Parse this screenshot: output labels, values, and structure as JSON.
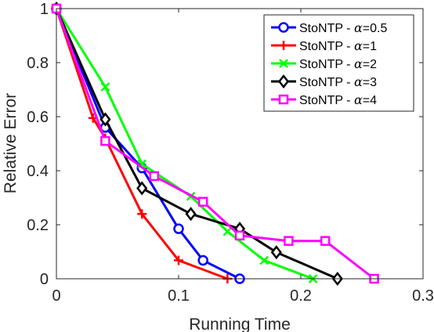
{
  "chart_data": {
    "type": "line",
    "xlabel": "Running Time",
    "ylabel": "Relative Error",
    "xlim": [
      0,
      0.3
    ],
    "ylim": [
      0,
      1
    ],
    "xticks": [
      0,
      0.1,
      0.2,
      0.3
    ],
    "xtick_labels": [
      "0",
      "0.1",
      "0.2",
      "0.3"
    ],
    "yticks": [
      0,
      0.2,
      0.4,
      0.6,
      0.8,
      1
    ],
    "ytick_labels": [
      "0",
      "0.2",
      "0.4",
      "0.6",
      "0.8",
      "1"
    ],
    "grid": false,
    "legend_position": "top-right",
    "series": [
      {
        "name": "StoNTP - α=0.5",
        "name_prefix": "StoNTP - ",
        "name_symbol": "α",
        "name_value": "=0.5",
        "color": "#0000ff",
        "marker": "circle",
        "x": [
          0,
          0.04,
          0.07,
          0.1,
          0.12,
          0.15
        ],
        "y": [
          1,
          0.56,
          0.41,
          0.185,
          0.068,
          0
        ]
      },
      {
        "name": "StoNTP - α=1",
        "name_prefix": "StoNTP - ",
        "name_symbol": "α",
        "name_value": "=1",
        "color": "#ff0000",
        "marker": "plus",
        "x": [
          0,
          0.03,
          0.04,
          0.07,
          0.1,
          0.14
        ],
        "y": [
          1,
          0.595,
          0.52,
          0.24,
          0.068,
          0
        ]
      },
      {
        "name": "StoNTP - α=2",
        "name_prefix": "StoNTP - ",
        "name_symbol": "α",
        "name_value": "=2",
        "color": "#00ff00",
        "marker": "x",
        "x": [
          0,
          0.04,
          0.07,
          0.11,
          0.14,
          0.17,
          0.21
        ],
        "y": [
          1,
          0.71,
          0.425,
          0.305,
          0.175,
          0.068,
          0
        ]
      },
      {
        "name": "StoNTP - α=3",
        "name_prefix": "StoNTP - ",
        "name_symbol": "α",
        "name_value": "=3",
        "color": "#000000",
        "marker": "diamond",
        "x": [
          0,
          0.04,
          0.07,
          0.11,
          0.15,
          0.18,
          0.23
        ],
        "y": [
          1,
          0.59,
          0.335,
          0.24,
          0.185,
          0.098,
          0
        ]
      },
      {
        "name": "StoNTP - α=4",
        "name_prefix": "StoNTP - ",
        "name_symbol": "α",
        "name_value": "=4",
        "color": "#ff00ff",
        "marker": "square",
        "x": [
          0,
          0.04,
          0.08,
          0.12,
          0.15,
          0.19,
          0.22,
          0.26
        ],
        "y": [
          1,
          0.51,
          0.38,
          0.285,
          0.16,
          0.14,
          0.14,
          0
        ]
      }
    ]
  }
}
